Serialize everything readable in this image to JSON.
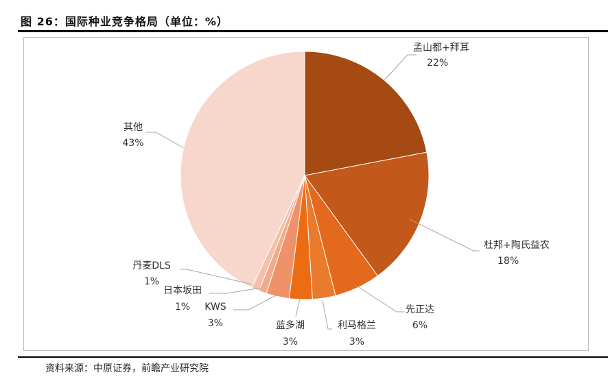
{
  "figure": {
    "title": "图 26：国际种业竞争格局（单位：%）",
    "source": "资料来源：中原证券，前瞻产业研究院"
  },
  "chart_data": {
    "type": "pie",
    "title": "",
    "slices": [
      {
        "name": "孟山都+拜耳",
        "value": 22,
        "label": "22%",
        "color": "#a44a12"
      },
      {
        "name": "杜邦+陶氏益农",
        "value": 18,
        "label": "18%",
        "color": "#c2581a"
      },
      {
        "name": "先正达",
        "value": 6,
        "label": "6%",
        "color": "#e4691c"
      },
      {
        "name": "利马格兰",
        "value": 3,
        "label": "3%",
        "color": "#ea7a2c"
      },
      {
        "name": "蓝多湖",
        "value": 3,
        "label": "3%",
        "color": "#ec6c14"
      },
      {
        "name": "KWS",
        "value": 3,
        "label": "3%",
        "color": "#ef926a"
      },
      {
        "name": "日本坂田",
        "value": 1,
        "label": "1%",
        "color": "#f2aa8c"
      },
      {
        "name": "丹麦DLS",
        "value": 1,
        "label": "1%",
        "color": "#f5bfa8"
      },
      {
        "name": "其他",
        "value": 43,
        "label": "43%",
        "color": "#f7d6cb"
      }
    ],
    "legend": "none",
    "start_angle": "12 o'clock",
    "direction": "clockwise"
  }
}
